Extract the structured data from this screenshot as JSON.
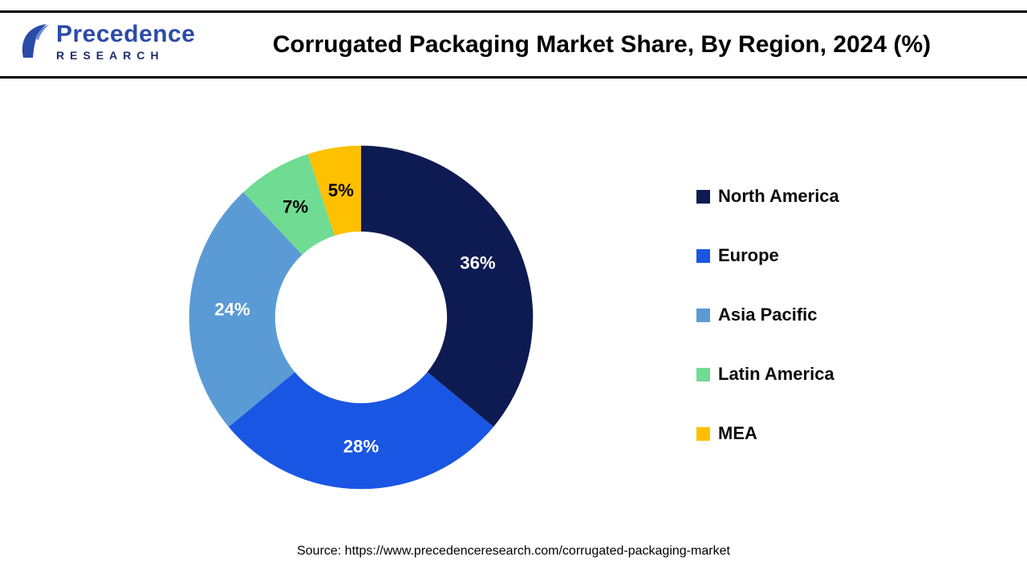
{
  "header": {
    "logo": {
      "line1": "Precedence",
      "line2": "RESEARCH"
    },
    "title": "Corrugated Packaging Market Share, By Region, 2024 (%)"
  },
  "chart_data": {
    "type": "pie",
    "subtype": "donut",
    "title": "Corrugated Packaging Market Share, By Region, 2024 (%)",
    "categories": [
      "North America",
      "Europe",
      "Asia Pacific",
      "Latin America",
      "MEA"
    ],
    "values": [
      36,
      28,
      24,
      7,
      5
    ],
    "unit": "%",
    "colors": [
      "#0d1b52",
      "#1a56e4",
      "#5b9bd5",
      "#70db93",
      "#ffc000"
    ],
    "label_colors": [
      "#ffffff",
      "#ffffff",
      "#ffffff",
      "#000000",
      "#000000"
    ],
    "start_angle_deg": 0,
    "direction": "clockwise",
    "inner_radius_ratio": 0.5,
    "legend_position": "right",
    "grid": false
  },
  "footer": {
    "source": "Source: https://www.precedenceresearch.com/corrugated-packaging-market"
  }
}
